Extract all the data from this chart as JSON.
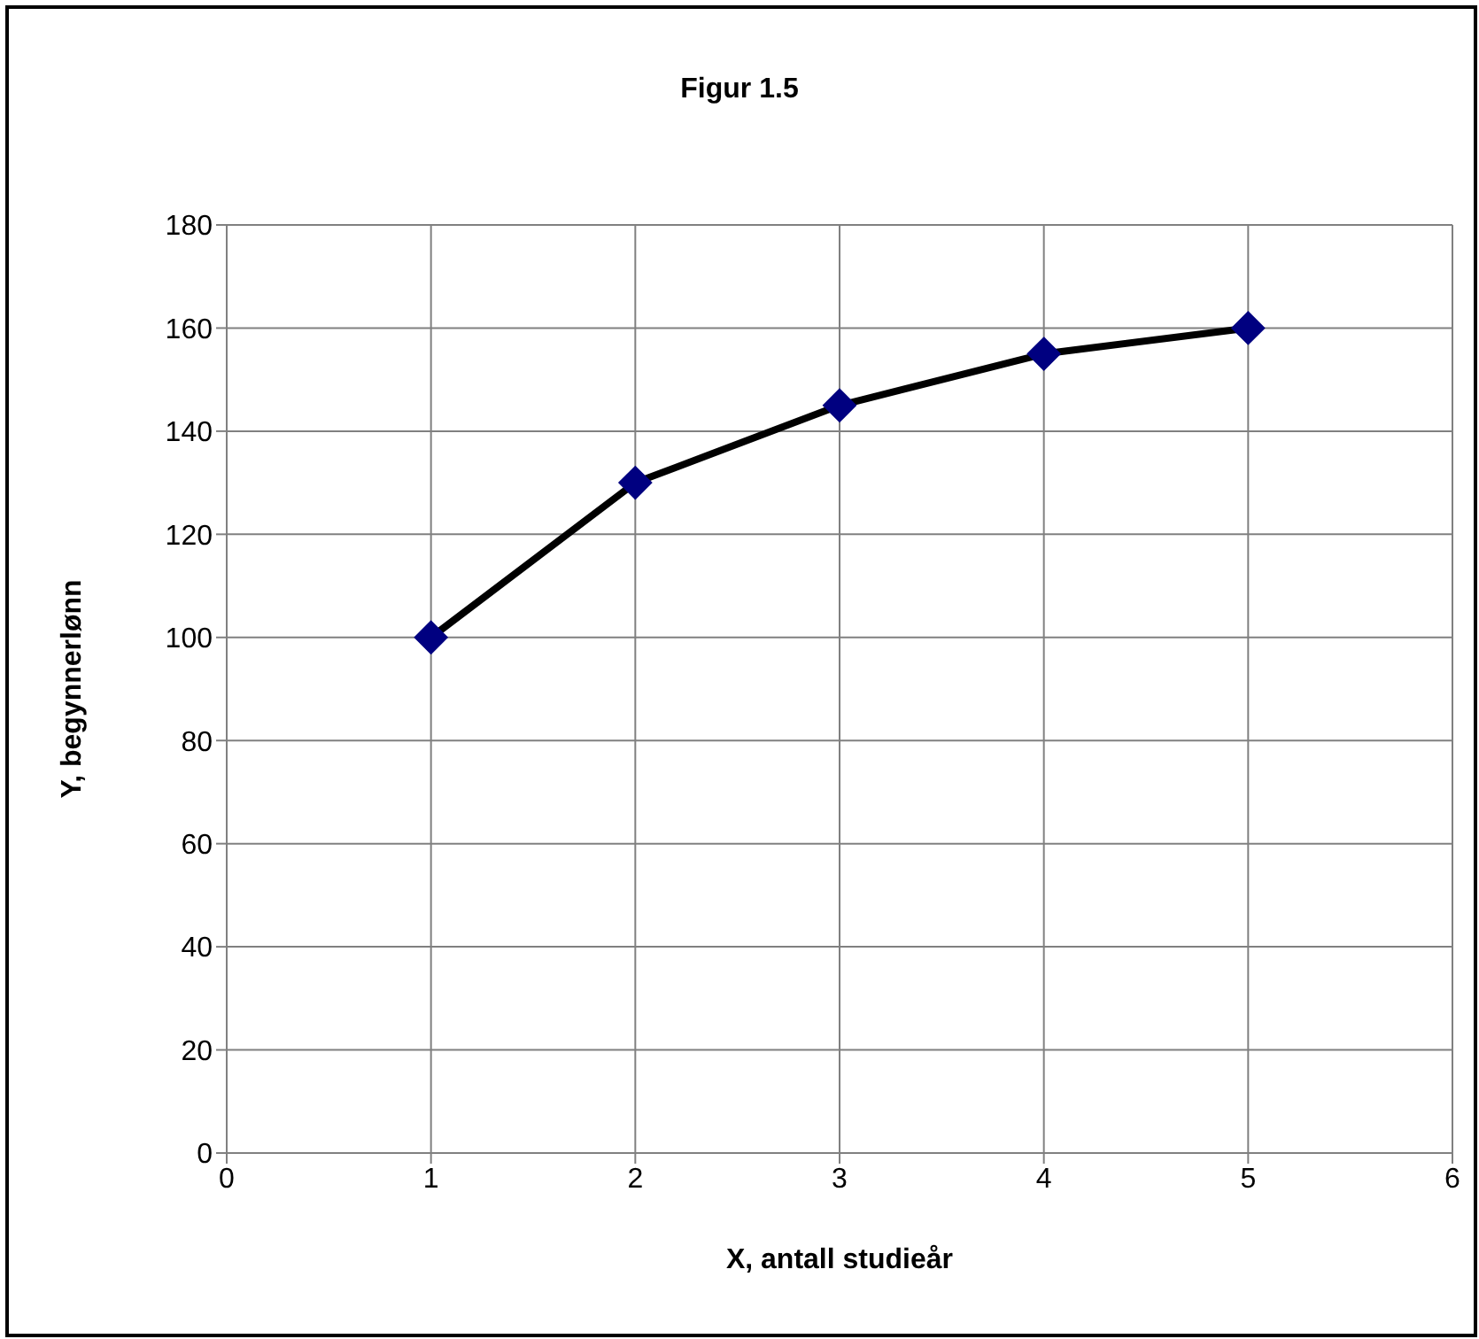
{
  "chart_data": {
    "type": "line",
    "title": "Figur 1.5",
    "xlabel": "X, antall studieår",
    "ylabel": "Y, begynnerlønn",
    "x": [
      1,
      2,
      3,
      4,
      5
    ],
    "series": [
      {
        "color": "#000080",
        "values": [
          100,
          130,
          145,
          155,
          160
        ]
      }
    ],
    "xlim": [
      0,
      6
    ],
    "xticks": [
      0,
      1,
      2,
      3,
      4,
      5,
      6
    ],
    "ylim": [
      0,
      180
    ],
    "yticks": [
      0,
      20,
      40,
      60,
      80,
      100,
      120,
      140,
      160,
      180
    ],
    "grid": true,
    "legend": false,
    "marker": "diamond",
    "line_style": "solid"
  }
}
